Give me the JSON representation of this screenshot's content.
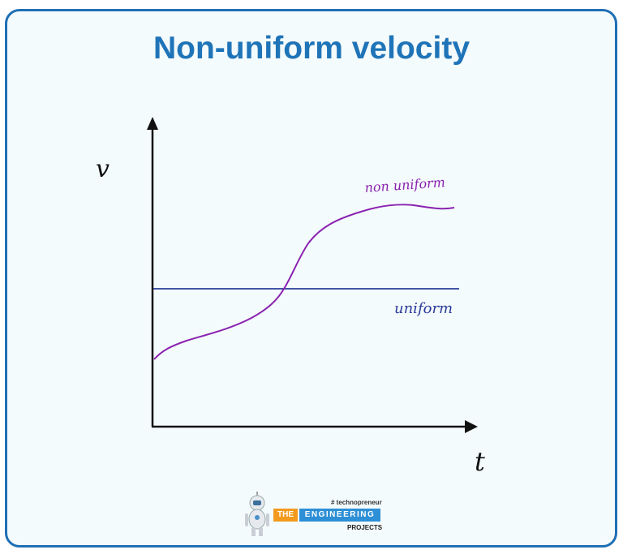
{
  "title": "Non-uniform velocity",
  "axes": {
    "y_label": "v",
    "x_label": "t"
  },
  "curves": {
    "uniform": {
      "label": "uniform",
      "color": "#2a3c9a"
    },
    "non_uniform": {
      "label": "non uniform",
      "color": "#8a22b0"
    }
  },
  "logo": {
    "tagline": "# technopreneur",
    "the": "THE",
    "engineering": "ENGINEERING",
    "projects": "PROJECTS",
    "colors": {
      "orange": "#f39a1e",
      "blue": "#2d8fd6"
    }
  },
  "colors": {
    "frame": "#1f6fb5",
    "title": "#1f74b8",
    "background": "#f4fbfc"
  }
}
